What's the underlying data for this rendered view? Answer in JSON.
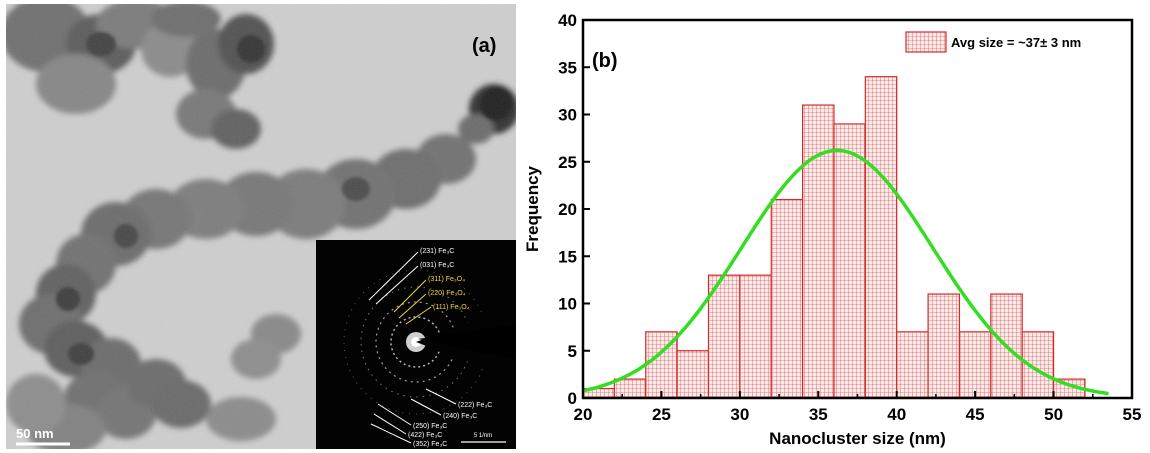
{
  "panel_a": {
    "label": "(a)",
    "scale_bar": "50 nm",
    "inset": {
      "scale_bar": "5 1/nm",
      "rings_upper": [
        {
          "text": "(231) Fe₃C",
          "color": "#ffffff"
        },
        {
          "text": "(031) Fe₃C",
          "color": "#ffffff"
        },
        {
          "text": "(311) Fe₃O₄",
          "color": "#f2d43c"
        },
        {
          "text": "(220) Fe₃O₄",
          "color": "#f2d43c"
        },
        {
          "text": "(111) Fe₃O₄",
          "color": "#f2d43c"
        }
      ],
      "rings_lower": [
        {
          "text": "(222) Fe₃C",
          "color": "#ffffff"
        },
        {
          "text": "(240) Fe₃C",
          "color": "#ffffff"
        },
        {
          "text": "(250) Fe₃C",
          "color": "#ffffff"
        },
        {
          "text": "(422) Fe₃C",
          "color": "#ffffff"
        },
        {
          "text": "(352) Fe₃C",
          "color": "#ffffff"
        }
      ]
    }
  },
  "panel_b": {
    "label": "(b)"
  },
  "chart_data": {
    "type": "bar",
    "subtype": "histogram",
    "xlabel": "Nanocluster size (nm)",
    "ylabel": "Frequency",
    "xlim": [
      20,
      55
    ],
    "ylim": [
      0,
      40
    ],
    "xticks": [
      20,
      25,
      30,
      35,
      40,
      45,
      50,
      55
    ],
    "yticks": [
      0,
      5,
      10,
      15,
      20,
      25,
      30,
      35,
      40
    ],
    "bin_width": 2,
    "bins": [
      {
        "x0": 20,
        "x1": 22,
        "count": 1
      },
      {
        "x0": 22,
        "x1": 24,
        "count": 2
      },
      {
        "x0": 24,
        "x1": 26,
        "count": 7
      },
      {
        "x0": 26,
        "x1": 28,
        "count": 5
      },
      {
        "x0": 28,
        "x1": 30,
        "count": 13
      },
      {
        "x0": 30,
        "x1": 32,
        "count": 13
      },
      {
        "x0": 32,
        "x1": 34,
        "count": 21
      },
      {
        "x0": 34,
        "x1": 36,
        "count": 31
      },
      {
        "x0": 36,
        "x1": 38,
        "count": 29
      },
      {
        "x0": 38,
        "x1": 40,
        "count": 34
      },
      {
        "x0": 40,
        "x1": 42,
        "count": 7
      },
      {
        "x0": 42,
        "x1": 44,
        "count": 11
      },
      {
        "x0": 44,
        "x1": 46,
        "count": 7
      },
      {
        "x0": 46,
        "x1": 48,
        "count": 11
      },
      {
        "x0": 48,
        "x1": 50,
        "count": 7
      },
      {
        "x0": 50,
        "x1": 52,
        "count": 2
      }
    ],
    "fit": {
      "type": "gaussian",
      "peak_x": 36.2,
      "peak_y": 26.2,
      "sigma": 6.1,
      "color": "#33dd22"
    },
    "legend": {
      "label": "Avg size = ~37± 3 nm",
      "position": "top-right"
    },
    "bar_color": "#d42a2a",
    "bar_fill": "#fbeaea",
    "grid": false
  }
}
